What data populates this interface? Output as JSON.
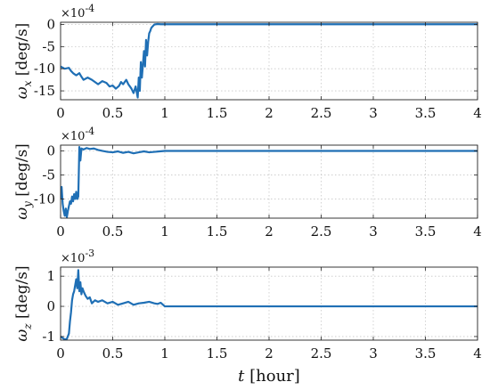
{
  "chart_data": [
    {
      "type": "line",
      "ylabel": {
        "symbol": "ω",
        "sub": "x",
        "unit": "[deg/s]"
      },
      "exponent": {
        "base": "×10",
        "power": "-4"
      },
      "xlim": [
        0,
        4
      ],
      "ylim": [
        -17,
        0.5
      ],
      "xticks": [
        0,
        0.5,
        1,
        1.5,
        2,
        2.5,
        3,
        3.5,
        4
      ],
      "xtick_labels": [
        "0",
        "0.5",
        "1",
        "1.5",
        "2",
        "2.5",
        "3",
        "3.5",
        "4"
      ],
      "yticks": [
        -15,
        -10,
        -5,
        0
      ],
      "ytick_labels": [
        "-15",
        "-10",
        "-5",
        "0"
      ],
      "grid": "dotted",
      "color": "#1f6fb5",
      "series": [
        {
          "x": [
            0,
            0.04,
            0.08,
            0.1,
            0.12,
            0.15,
            0.18,
            0.2,
            0.22,
            0.26,
            0.3,
            0.33,
            0.36,
            0.4,
            0.44,
            0.47,
            0.5,
            0.53,
            0.56,
            0.58,
            0.6,
            0.63,
            0.65,
            0.68,
            0.7,
            0.72,
            0.74,
            0.75,
            0.76,
            0.77,
            0.78,
            0.79,
            0.8,
            0.81,
            0.82,
            0.83,
            0.84,
            0.85,
            0.86,
            0.87,
            0.88,
            0.9,
            0.93,
            0.96,
            1.0,
            1.5,
            2.0,
            2.5,
            3.0,
            3.5,
            4.0
          ],
          "y": [
            -9.5,
            -10.0,
            -9.8,
            -10.5,
            -11.0,
            -11.5,
            -11.0,
            -11.8,
            -12.5,
            -12.0,
            -12.5,
            -13.0,
            -13.5,
            -12.8,
            -13.2,
            -14.0,
            -13.8,
            -14.5,
            -13.9,
            -13.0,
            -13.5,
            -12.5,
            -13.5,
            -14.5,
            -15.5,
            -14.0,
            -16.5,
            -12.0,
            -15.0,
            -8.5,
            -12.0,
            -9.0,
            -6.0,
            -9.5,
            -3.5,
            -7.0,
            -4.0,
            -2.0,
            -1.5,
            -0.8,
            -0.5,
            0.0,
            0.1,
            0.05,
            0.05,
            0.05,
            0.05,
            0.05,
            0.05,
            0.05,
            0.05
          ]
        }
      ]
    },
    {
      "type": "line",
      "ylabel": {
        "symbol": "ω",
        "sub": "y",
        "unit": "[deg/s]"
      },
      "exponent": {
        "base": "×10",
        "power": "-4"
      },
      "xlim": [
        0,
        4
      ],
      "ylim": [
        -14,
        1.2
      ],
      "xticks": [
        0,
        0.5,
        1,
        1.5,
        2,
        2.5,
        3,
        3.5,
        4
      ],
      "xtick_labels": [
        "0",
        "0.5",
        "1",
        "1.5",
        "2",
        "2.5",
        "3",
        "3.5",
        "4"
      ],
      "yticks": [
        -10,
        -5,
        0
      ],
      "ytick_labels": [
        "-10",
        "-5",
        "0"
      ],
      "grid": "dotted",
      "color": "#1f6fb5",
      "series": [
        {
          "x": [
            0,
            0.01,
            0.02,
            0.03,
            0.04,
            0.05,
            0.06,
            0.07,
            0.08,
            0.09,
            0.1,
            0.11,
            0.12,
            0.13,
            0.14,
            0.15,
            0.16,
            0.17,
            0.18,
            0.19,
            0.2,
            0.22,
            0.25,
            0.28,
            0.32,
            0.36,
            0.4,
            0.45,
            0.5,
            0.55,
            0.6,
            0.65,
            0.7,
            0.75,
            0.8,
            0.85,
            0.9,
            0.95,
            1.0,
            1.5,
            2.0,
            2.5,
            3.0,
            3.5,
            4.0
          ],
          "y": [
            -10.0,
            -7.5,
            -11.0,
            -12.5,
            -13.5,
            -12.0,
            -13.8,
            -12.5,
            -11.5,
            -10.5,
            -11.0,
            -9.5,
            -10.5,
            -9.0,
            -10.0,
            -8.5,
            -10.0,
            -9.5,
            0.8,
            -2.0,
            0.5,
            0.3,
            0.6,
            0.4,
            0.5,
            0.2,
            0.0,
            -0.2,
            -0.3,
            -0.1,
            -0.4,
            -0.2,
            -0.5,
            -0.3,
            -0.1,
            -0.3,
            -0.2,
            -0.1,
            0.0,
            0.0,
            0.0,
            0.0,
            0.0,
            0.0,
            0.0
          ]
        }
      ]
    },
    {
      "type": "line",
      "ylabel": {
        "symbol": "ω",
        "sub": "z",
        "unit": "[deg/s]"
      },
      "exponent": {
        "base": "×10",
        "power": "-3"
      },
      "xlabel": {
        "symbol": "t",
        "unit": "[hour]"
      },
      "xlim": [
        0,
        4
      ],
      "ylim": [
        -1.12,
        1.3
      ],
      "xticks": [
        0,
        0.5,
        1,
        1.5,
        2,
        2.5,
        3,
        3.5,
        4
      ],
      "xtick_labels": [
        "0",
        "0.5",
        "1",
        "1.5",
        "2",
        "2.5",
        "3",
        "3.5",
        "4"
      ],
      "yticks": [
        -1,
        0,
        1
      ],
      "ytick_labels": [
        "-1",
        "0",
        "1"
      ],
      "grid": "dotted",
      "color": "#1f6fb5",
      "series": [
        {
          "x": [
            0,
            0.02,
            0.04,
            0.06,
            0.08,
            0.09,
            0.1,
            0.11,
            0.12,
            0.13,
            0.14,
            0.15,
            0.16,
            0.17,
            0.18,
            0.19,
            0.2,
            0.21,
            0.22,
            0.24,
            0.26,
            0.28,
            0.3,
            0.33,
            0.36,
            0.4,
            0.45,
            0.5,
            0.55,
            0.6,
            0.65,
            0.7,
            0.75,
            0.8,
            0.85,
            0.9,
            0.93,
            0.96,
            1.0,
            1.5,
            2.0,
            2.5,
            3.0,
            3.5,
            4.0
          ],
          "y": [
            -1.0,
            -1.05,
            -1.1,
            -1.08,
            -0.9,
            -0.5,
            -0.2,
            0.2,
            0.4,
            0.5,
            0.7,
            0.9,
            0.6,
            1.2,
            0.5,
            0.8,
            0.4,
            0.6,
            0.5,
            0.35,
            0.25,
            0.3,
            0.1,
            0.2,
            0.15,
            0.2,
            0.1,
            0.15,
            0.05,
            0.1,
            0.15,
            0.05,
            0.1,
            0.12,
            0.15,
            0.1,
            0.08,
            0.12,
            0.0,
            0.0,
            0.0,
            0.0,
            0.0,
            0.0,
            0.0
          ]
        }
      ]
    }
  ]
}
